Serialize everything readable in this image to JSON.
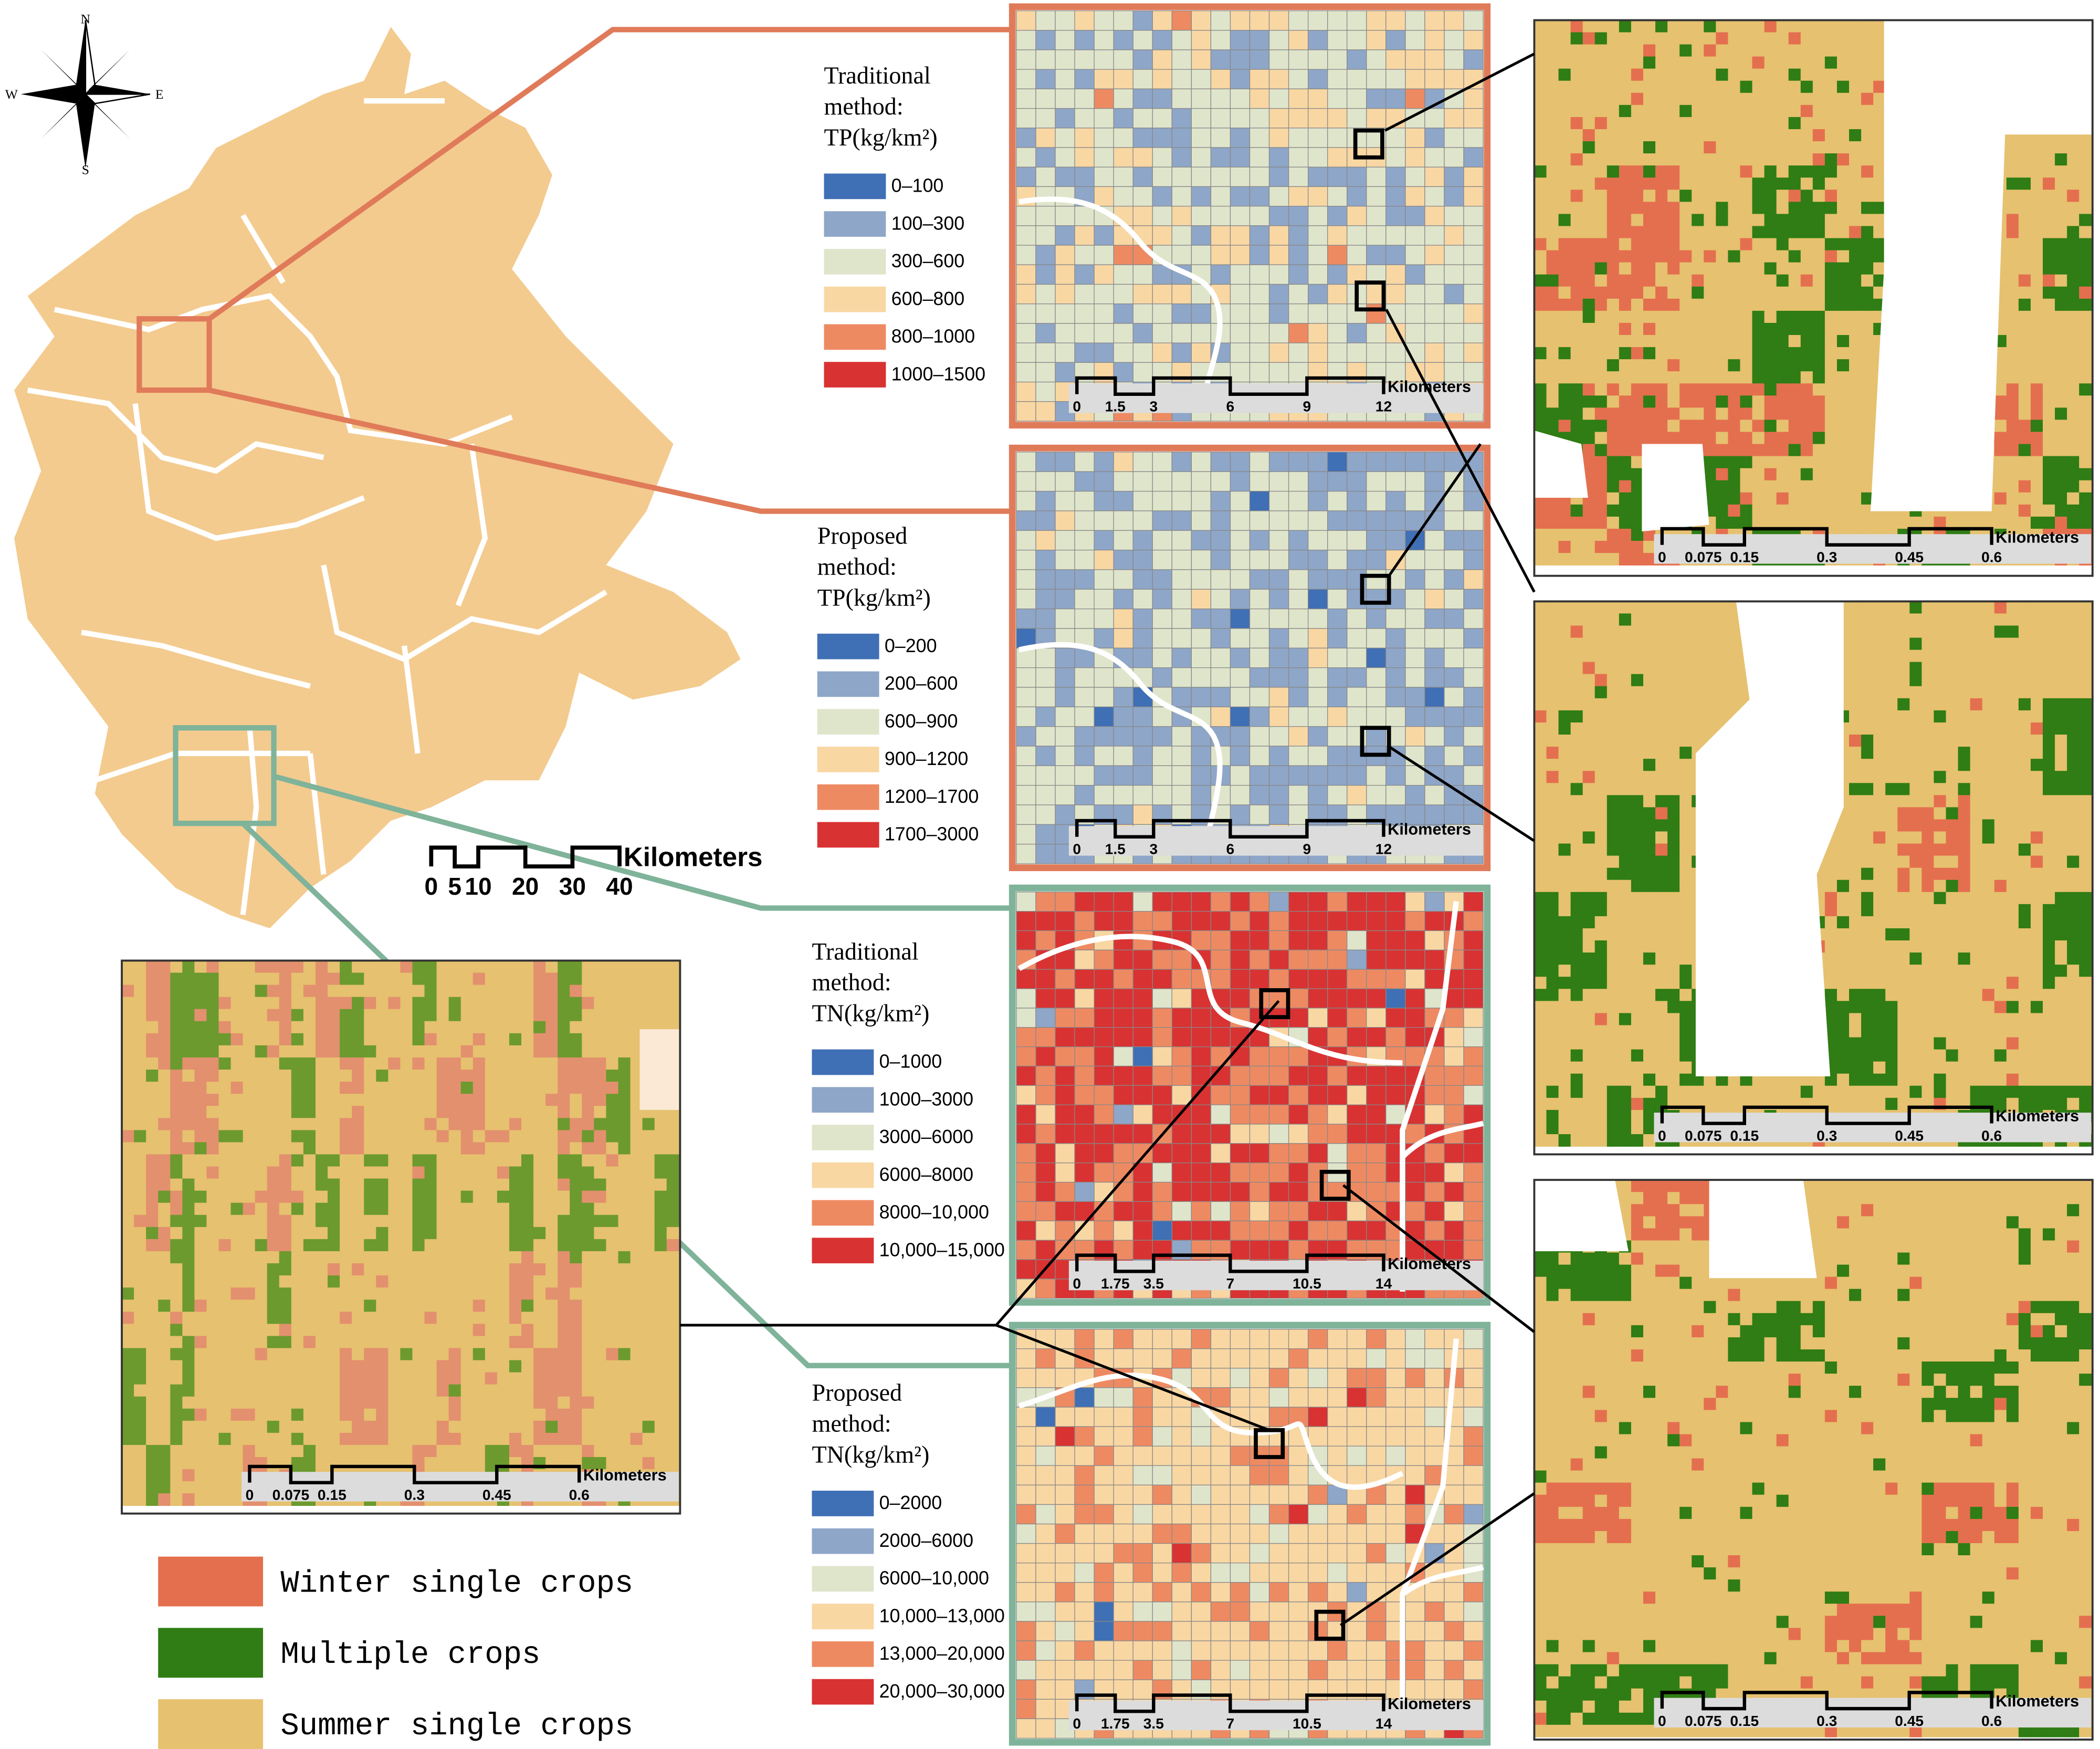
{
  "compass": {
    "north": "N",
    "south": "S",
    "west": "W",
    "east": "E"
  },
  "overview_scale": {
    "ticks": [
      0,
      5,
      10,
      20,
      30,
      40
    ],
    "unit": "Kilometers"
  },
  "panels": [
    {
      "title": [
        "Traditional",
        "method:",
        "TP(kg/km²)"
      ],
      "frame_color": "#e07b5a",
      "classes": [
        "0–100",
        "100–300",
        "300–600",
        "600–800",
        "800–1000",
        "1000–1500"
      ],
      "colors": [
        "#3f6fb5",
        "#8ea6c8",
        "#dfe5cb",
        "#f9d7a3",
        "#ee8a62",
        "#d93232"
      ],
      "scale": {
        "ticks": [
          0,
          1.5,
          3,
          6,
          9,
          12
        ],
        "unit": "Kilometers"
      }
    },
    {
      "title": [
        "Proposed",
        "method:",
        "TP(kg/km²)"
      ],
      "frame_color": "#e07b5a",
      "classes": [
        "0–200",
        "200–600",
        "600–900",
        "900–1200",
        "1200–1700",
        "1700–3000"
      ],
      "colors": [
        "#3f6fb5",
        "#8ea6c8",
        "#dfe5cb",
        "#f9d7a3",
        "#ee8a62",
        "#d93232"
      ],
      "scale": {
        "ticks": [
          0,
          1.5,
          3,
          6,
          9,
          12
        ],
        "unit": "Kilometers"
      }
    },
    {
      "title": [
        "Traditional",
        "method:",
        "TN(kg/km²)"
      ],
      "frame_color": "#7fb39a",
      "classes": [
        "0–1000",
        "1000–3000",
        "3000–6000",
        "6000–8000",
        "8000–10,000",
        "10,000–15,000"
      ],
      "colors": [
        "#3f6fb5",
        "#8ea6c8",
        "#dfe5cb",
        "#f9d7a3",
        "#ee8a62",
        "#d93232"
      ],
      "scale": {
        "ticks": [
          0,
          1.75,
          3.5,
          7,
          10.5,
          14
        ],
        "unit": "Kilometers"
      }
    },
    {
      "title": [
        "Proposed",
        "method:",
        "TN(kg/km²)"
      ],
      "frame_color": "#7fb39a",
      "classes": [
        "0–2000",
        "2000–6000",
        "6000–10,000",
        "10,000–13,000",
        "13,000–20,000",
        "20,000–30,000"
      ],
      "colors": [
        "#3f6fb5",
        "#8ea6c8",
        "#dfe5cb",
        "#f9d7a3",
        "#ee8a62",
        "#d93232"
      ],
      "scale": {
        "ticks": [
          0,
          1.75,
          3.5,
          7,
          10.5,
          14
        ],
        "unit": "Kilometers"
      }
    }
  ],
  "crop_scale": {
    "ticks": [
      0,
      0.075,
      0.15,
      0.3,
      0.45,
      0.6
    ],
    "unit": "Kilometers"
  },
  "legend": {
    "items": [
      {
        "label": "Winter single crops",
        "color": "#e46f4f"
      },
      {
        "label": "Multiple crops",
        "color": "#2f7d14"
      },
      {
        "label": "Summer single crops",
        "color": "#e6c16f"
      }
    ]
  }
}
